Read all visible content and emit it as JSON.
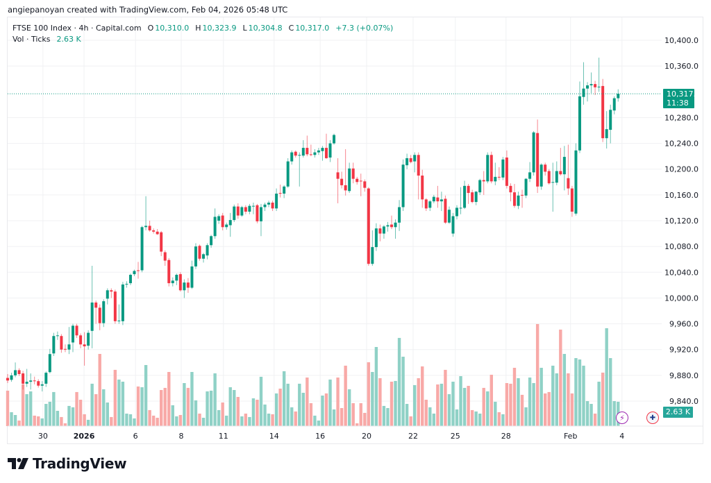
{
  "credit": "angiepanoyan created with TradingView.com, Feb 04, 2026 05:48 UTC",
  "legend": {
    "symbol": "FTSE 100 Index · 4h · Capital.com",
    "o_label": "O",
    "o": "10,310.0",
    "h_label": "H",
    "h": "10,323.9",
    "l_label": "L",
    "l": "10,304.8",
    "c_label": "C",
    "c": "10,317.0",
    "change": "+7.3 (+0.07%)",
    "vol_label": "Vol · Ticks",
    "vol_value": "2.63 K"
  },
  "price_tag": {
    "price": "10,317.0",
    "countdown": "11:38"
  },
  "volume_tag": "2.63 K",
  "logo_text": "TradingView",
  "icons": {
    "bolt": "lightning-icon",
    "flag": "uk-flag-icon"
  },
  "colors": {
    "up": "#089981",
    "down": "#f23645",
    "vol_up": "#8fd1c6",
    "vol_down": "#f8a9a7",
    "grid": "#f0f1f3"
  },
  "chart_data": {
    "type": "candlestick",
    "title": "FTSE 100 Index · 4h · Capital.com",
    "ylim": [
      9840,
      10400
    ],
    "y_ticks": [
      9840,
      9880,
      9920,
      9960,
      10000,
      10040,
      10080,
      10120,
      10160,
      10200,
      10240,
      10280,
      10360,
      10400
    ],
    "y_tick_labels": [
      "9,840.0",
      "9,880.0",
      "9,920.0",
      "9,960.0",
      "10,000.0",
      "10,040.0",
      "10,080.0",
      "10,120.0",
      "10,160.0",
      "10,200.0",
      "10,240.0",
      "10,280.0",
      "10,360.0",
      "10,400.0"
    ],
    "x_ticks": [
      {
        "label": "30",
        "bar": 9.2,
        "bold": false
      },
      {
        "label": "2026",
        "bar": 19.9,
        "bold": true
      },
      {
        "label": "6",
        "bar": 33.3,
        "bold": false
      },
      {
        "label": "8",
        "bar": 45.2,
        "bold": false
      },
      {
        "label": "11",
        "bar": 56.2,
        "bold": false
      },
      {
        "label": "14",
        "bar": 69.4,
        "bold": false
      },
      {
        "label": "16",
        "bar": 81.4,
        "bold": false
      },
      {
        "label": "20",
        "bar": 93.5,
        "bold": false
      },
      {
        "label": "22",
        "bar": 105.6,
        "bold": false
      },
      {
        "label": "25",
        "bar": 116.6,
        "bold": false
      },
      {
        "label": "28",
        "bar": 129.8,
        "bold": false
      },
      {
        "label": "Feb",
        "bar": 146.6,
        "bold": false
      },
      {
        "label": "4",
        "bar": 160,
        "bold": false
      }
    ],
    "last_price": 10317.0,
    "volume_unit": "K",
    "ohlc": [
      [
        9876,
        9882,
        9868,
        9872
      ],
      [
        9873,
        9884,
        9870,
        9880
      ],
      [
        9880,
        9900,
        9877,
        9888
      ],
      [
        9888,
        9891,
        9879,
        9882
      ],
      [
        9883,
        9887,
        9858,
        9867
      ],
      [
        9867,
        9890,
        9862,
        9870
      ],
      [
        9870,
        9883,
        9858,
        9872
      ],
      [
        9872,
        9878,
        9866,
        9871
      ],
      [
        9871,
        9874,
        9861,
        9864
      ],
      [
        9864,
        9871,
        9855,
        9866
      ],
      [
        9867,
        9886,
        9862,
        9884
      ],
      [
        9885,
        9921,
        9883,
        9913
      ],
      [
        9914,
        9946,
        9910,
        9941
      ],
      [
        9941,
        9948,
        9935,
        9942
      ],
      [
        9941,
        9944,
        9915,
        9920
      ],
      [
        9921,
        9928,
        9916,
        9920
      ],
      [
        9920,
        9955,
        9913,
        9928
      ],
      [
        9931,
        9960,
        9916,
        9957
      ],
      [
        9957,
        9960,
        9938,
        9942
      ],
      [
        9942,
        9945,
        9922,
        9928
      ],
      [
        9928,
        9947,
        9895,
        9925
      ],
      [
        9926,
        9950,
        9920,
        9946
      ],
      [
        9949,
        10050,
        9922,
        9993
      ],
      [
        9993,
        9996,
        9960,
        9985
      ],
      [
        9985,
        9990,
        9950,
        9961
      ],
      [
        9961,
        9998,
        9955,
        9995
      ],
      [
        9999,
        10015,
        9990,
        10012
      ],
      [
        10012,
        10015,
        10000,
        10010
      ],
      [
        10010,
        10013,
        9960,
        9964
      ],
      [
        9964,
        9990,
        9960,
        9965
      ],
      [
        9964,
        10025,
        9958,
        10021
      ],
      [
        10021,
        10026,
        10016,
        10022
      ],
      [
        10023,
        10038,
        10020,
        10036
      ],
      [
        10037,
        10044,
        10034,
        10042
      ],
      [
        10043,
        10056,
        10030,
        10042
      ],
      [
        10043,
        10112,
        10040,
        10110
      ],
      [
        10110,
        10158,
        10105,
        10112
      ],
      [
        10112,
        10120,
        10103,
        10105
      ],
      [
        10105,
        10108,
        10100,
        10103
      ],
      [
        10103,
        10107,
        10098,
        10099
      ],
      [
        10102,
        10104,
        10065,
        10072
      ],
      [
        10071,
        10074,
        10050,
        10058
      ],
      [
        10059,
        10062,
        10018,
        10023
      ],
      [
        10023,
        10032,
        10018,
        10027
      ],
      [
        10027,
        10038,
        10020,
        10036
      ],
      [
        10037,
        10040,
        10010,
        10012
      ],
      [
        10012,
        10029,
        10000,
        10024
      ],
      [
        10024,
        10031,
        10008,
        10016
      ],
      [
        10016,
        10058,
        10014,
        10049
      ],
      [
        10049,
        10085,
        10045,
        10080
      ],
      [
        10081,
        10083,
        10058,
        10061
      ],
      [
        10061,
        10070,
        10055,
        10068
      ],
      [
        10066,
        10085,
        10060,
        10082
      ],
      [
        10082,
        10098,
        10078,
        10096
      ],
      [
        10096,
        10139,
        10092,
        10126
      ],
      [
        10120,
        10130,
        10115,
        10127
      ],
      [
        10128,
        10132,
        10105,
        10110
      ],
      [
        10110,
        10117,
        10106,
        10114
      ],
      [
        10113,
        10132,
        10095,
        10121
      ],
      [
        10121,
        10145,
        10118,
        10142
      ],
      [
        10142,
        10147,
        10123,
        10128
      ],
      [
        10128,
        10143,
        10126,
        10141
      ],
      [
        10141,
        10144,
        10130,
        10134
      ],
      [
        10134,
        10146,
        10130,
        10143
      ],
      [
        10143,
        10148,
        10130,
        10143
      ],
      [
        10144,
        10146,
        10116,
        10119
      ],
      [
        10119,
        10146,
        10096,
        10141
      ],
      [
        10141,
        10148,
        10135,
        10145
      ],
      [
        10145,
        10151,
        10141,
        10148
      ],
      [
        10148,
        10151,
        10135,
        10139
      ],
      [
        10139,
        10170,
        10135,
        10162
      ],
      [
        10163,
        10176,
        10156,
        10162
      ],
      [
        10162,
        10175,
        10155,
        10173
      ],
      [
        10173,
        10217,
        10171,
        10212
      ],
      [
        10212,
        10229,
        10207,
        10226
      ],
      [
        10227,
        10229,
        10218,
        10221
      ],
      [
        10221,
        10226,
        10173,
        10222
      ],
      [
        10221,
        10245,
        10218,
        10233
      ],
      [
        10233,
        10252,
        10220,
        10223
      ],
      [
        10223,
        10238,
        10220,
        10222
      ],
      [
        10222,
        10231,
        10218,
        10226
      ],
      [
        10226,
        10233,
        10222,
        10229
      ],
      [
        10228,
        10236,
        10213,
        10233
      ],
      [
        10233,
        10255,
        10216,
        10217
      ],
      [
        10218,
        10245,
        10211,
        10240
      ],
      [
        10240,
        10255,
        10238,
        10253
      ],
      [
        10195,
        10217,
        10147,
        10185
      ],
      [
        10185,
        10196,
        10170,
        10175
      ],
      [
        10175,
        10231,
        10159,
        10167
      ],
      [
        10166,
        10210,
        10163,
        10201
      ],
      [
        10201,
        10210,
        10178,
        10185
      ],
      [
        10185,
        10188,
        10176,
        10180
      ],
      [
        10182,
        10193,
        10158,
        10181
      ],
      [
        10181,
        10184,
        10165,
        10171
      ],
      [
        10170,
        10172,
        10050,
        10053
      ],
      [
        10053,
        10105,
        10050,
        10079
      ],
      [
        10079,
        10116,
        10073,
        10108
      ],
      [
        10108,
        10114,
        10088,
        10100
      ],
      [
        10100,
        10113,
        10092,
        10111
      ],
      [
        10111,
        10118,
        10103,
        10113
      ],
      [
        10114,
        10128,
        10107,
        10110
      ],
      [
        10110,
        10122,
        10092,
        10117
      ],
      [
        10117,
        10152,
        10104,
        10141
      ],
      [
        10141,
        10215,
        10135,
        10207
      ],
      [
        10206,
        10224,
        10200,
        10217
      ],
      [
        10217,
        10222,
        10209,
        10211
      ],
      [
        10212,
        10226,
        10195,
        10222
      ],
      [
        10222,
        10226,
        10153,
        10190
      ],
      [
        10190,
        10199,
        10140,
        10153
      ],
      [
        10153,
        10155,
        10135,
        10139
      ],
      [
        10140,
        10152,
        10135,
        10150
      ],
      [
        10150,
        10160,
        10147,
        10157
      ],
      [
        10156,
        10174,
        10140,
        10150
      ],
      [
        10150,
        10165,
        10135,
        10153
      ],
      [
        10154,
        10159,
        10115,
        10117
      ],
      [
        10117,
        10142,
        10115,
        10137
      ],
      [
        10100,
        10132,
        10095,
        10127
      ],
      [
        10127,
        10144,
        10122,
        10140
      ],
      [
        10139,
        10172,
        10130,
        10140
      ],
      [
        10140,
        10182,
        10138,
        10174
      ],
      [
        10174,
        10177,
        10146,
        10163
      ],
      [
        10164,
        10168,
        10147,
        10149
      ],
      [
        10149,
        10166,
        10144,
        10165
      ],
      [
        10164,
        10185,
        10160,
        10183
      ],
      [
        10183,
        10197,
        10160,
        10181
      ],
      [
        10181,
        10226,
        10178,
        10222
      ],
      [
        10222,
        10227,
        10178,
        10181
      ],
      [
        10181,
        10210,
        10175,
        10188
      ],
      [
        10188,
        10203,
        10183,
        10187
      ],
      [
        10187,
        10219,
        10183,
        10215
      ],
      [
        10218,
        10229,
        10170,
        10174
      ],
      [
        10174,
        10178,
        10150,
        10164
      ],
      [
        10164,
        10177,
        10140,
        10143
      ],
      [
        10143,
        10165,
        10138,
        10159
      ],
      [
        10160,
        10168,
        10140,
        10159
      ],
      [
        10159,
        10186,
        10155,
        10185
      ],
      [
        10185,
        10211,
        10180,
        10195
      ],
      [
        10195,
        10259,
        10190,
        10257
      ],
      [
        10256,
        10277,
        10163,
        10173
      ],
      [
        10173,
        10209,
        10168,
        10207
      ],
      [
        10207,
        10210,
        10190,
        10196
      ],
      [
        10197,
        10200,
        10176,
        10178
      ],
      [
        10179,
        10210,
        10134,
        10180
      ],
      [
        10179,
        10212,
        10175,
        10197
      ],
      [
        10197,
        10233,
        10190,
        10192
      ],
      [
        10192,
        10236,
        10167,
        10219
      ],
      [
        10186,
        10238,
        10160,
        10170
      ],
      [
        10170,
        10174,
        10126,
        10134
      ],
      [
        10131,
        10240,
        10128,
        10229
      ],
      [
        10229,
        10336,
        10225,
        10313
      ],
      [
        10312,
        10366,
        10300,
        10325
      ],
      [
        10325,
        10335,
        10305,
        10330
      ],
      [
        10330,
        10350,
        10318,
        10332
      ],
      [
        10332,
        10337,
        10315,
        10327
      ],
      [
        10327,
        10373,
        10320,
        10328
      ],
      [
        10329,
        10340,
        10242,
        10248
      ],
      [
        10248,
        10290,
        10232,
        10262
      ],
      [
        10261,
        10300,
        10240,
        10292
      ],
      [
        10291,
        10313,
        10285,
        10310
      ],
      [
        10310,
        10323.9,
        10304.8,
        10317
      ]
    ],
    "volume": [
      3.83,
      1.5,
      1.2,
      0.6,
      4.5,
      3.45,
      3.75,
      1.13,
      1.05,
      0.83,
      2.4,
      2.63,
      3.68,
      1.65,
      0.98,
      0.3,
      2.18,
      2.03,
      3.68,
      2.85,
      1.28,
      0.68,
      4.58,
      3.45,
      7.8,
      3.98,
      2.55,
      0.98,
      6.08,
      5.03,
      4.8,
      1.35,
      1.28,
      0.83,
      4.28,
      4.2,
      6.6,
      1.73,
      1.13,
      0.9,
      3.9,
      4.13,
      5.85,
      2.25,
      1.05,
      1.2,
      4.65,
      4.13,
      5.85,
      2.78,
      1.35,
      0.9,
      3.75,
      3.83,
      5.7,
      1.73,
      2.55,
      1.13,
      4.2,
      3.9,
      3.15,
      1.05,
      1.35,
      0.98,
      3.0,
      2.85,
      5.33,
      2.33,
      1.35,
      1.28,
      3.53,
      4.05,
      5.93,
      4.58,
      2.03,
      1.58,
      4.58,
      3.6,
      5.25,
      2.48,
      1.13,
      0.6,
      3.3,
      3.53,
      5.03,
      1.8,
      5.25,
      1.95,
      6.53,
      3.98,
      2.48,
      0.3,
      2.48,
      1.43,
      6.9,
      5.85,
      8.55,
      5.18,
      2.18,
      1.95,
      4.8,
      4.88,
      9.53,
      7.5,
      2.4,
      1.05,
      4.43,
      5.18,
      6.45,
      2.85,
      2.03,
      1.35,
      4.5,
      4.58,
      6.08,
      3.45,
      4.8,
      1.8,
      5.4,
      4.13,
      4.35,
      1.73,
      1.58,
      1.35,
      4.13,
      3.75,
      5.55,
      2.63,
      1.5,
      1.28,
      4.65,
      4.58,
      6.3,
      5.18,
      3.38,
      2.03,
      5.25,
      4.65,
      11.03,
      6.3,
      3.53,
      3.68,
      6.53,
      5.7,
      10.43,
      7.8,
      5.7,
      3.53,
      7.35,
      7.2,
      6.53,
      2.7,
      2.4,
      1.35,
      4.8,
      5.78,
      10.58,
      7.35,
      2.7,
      2.63
    ]
  }
}
